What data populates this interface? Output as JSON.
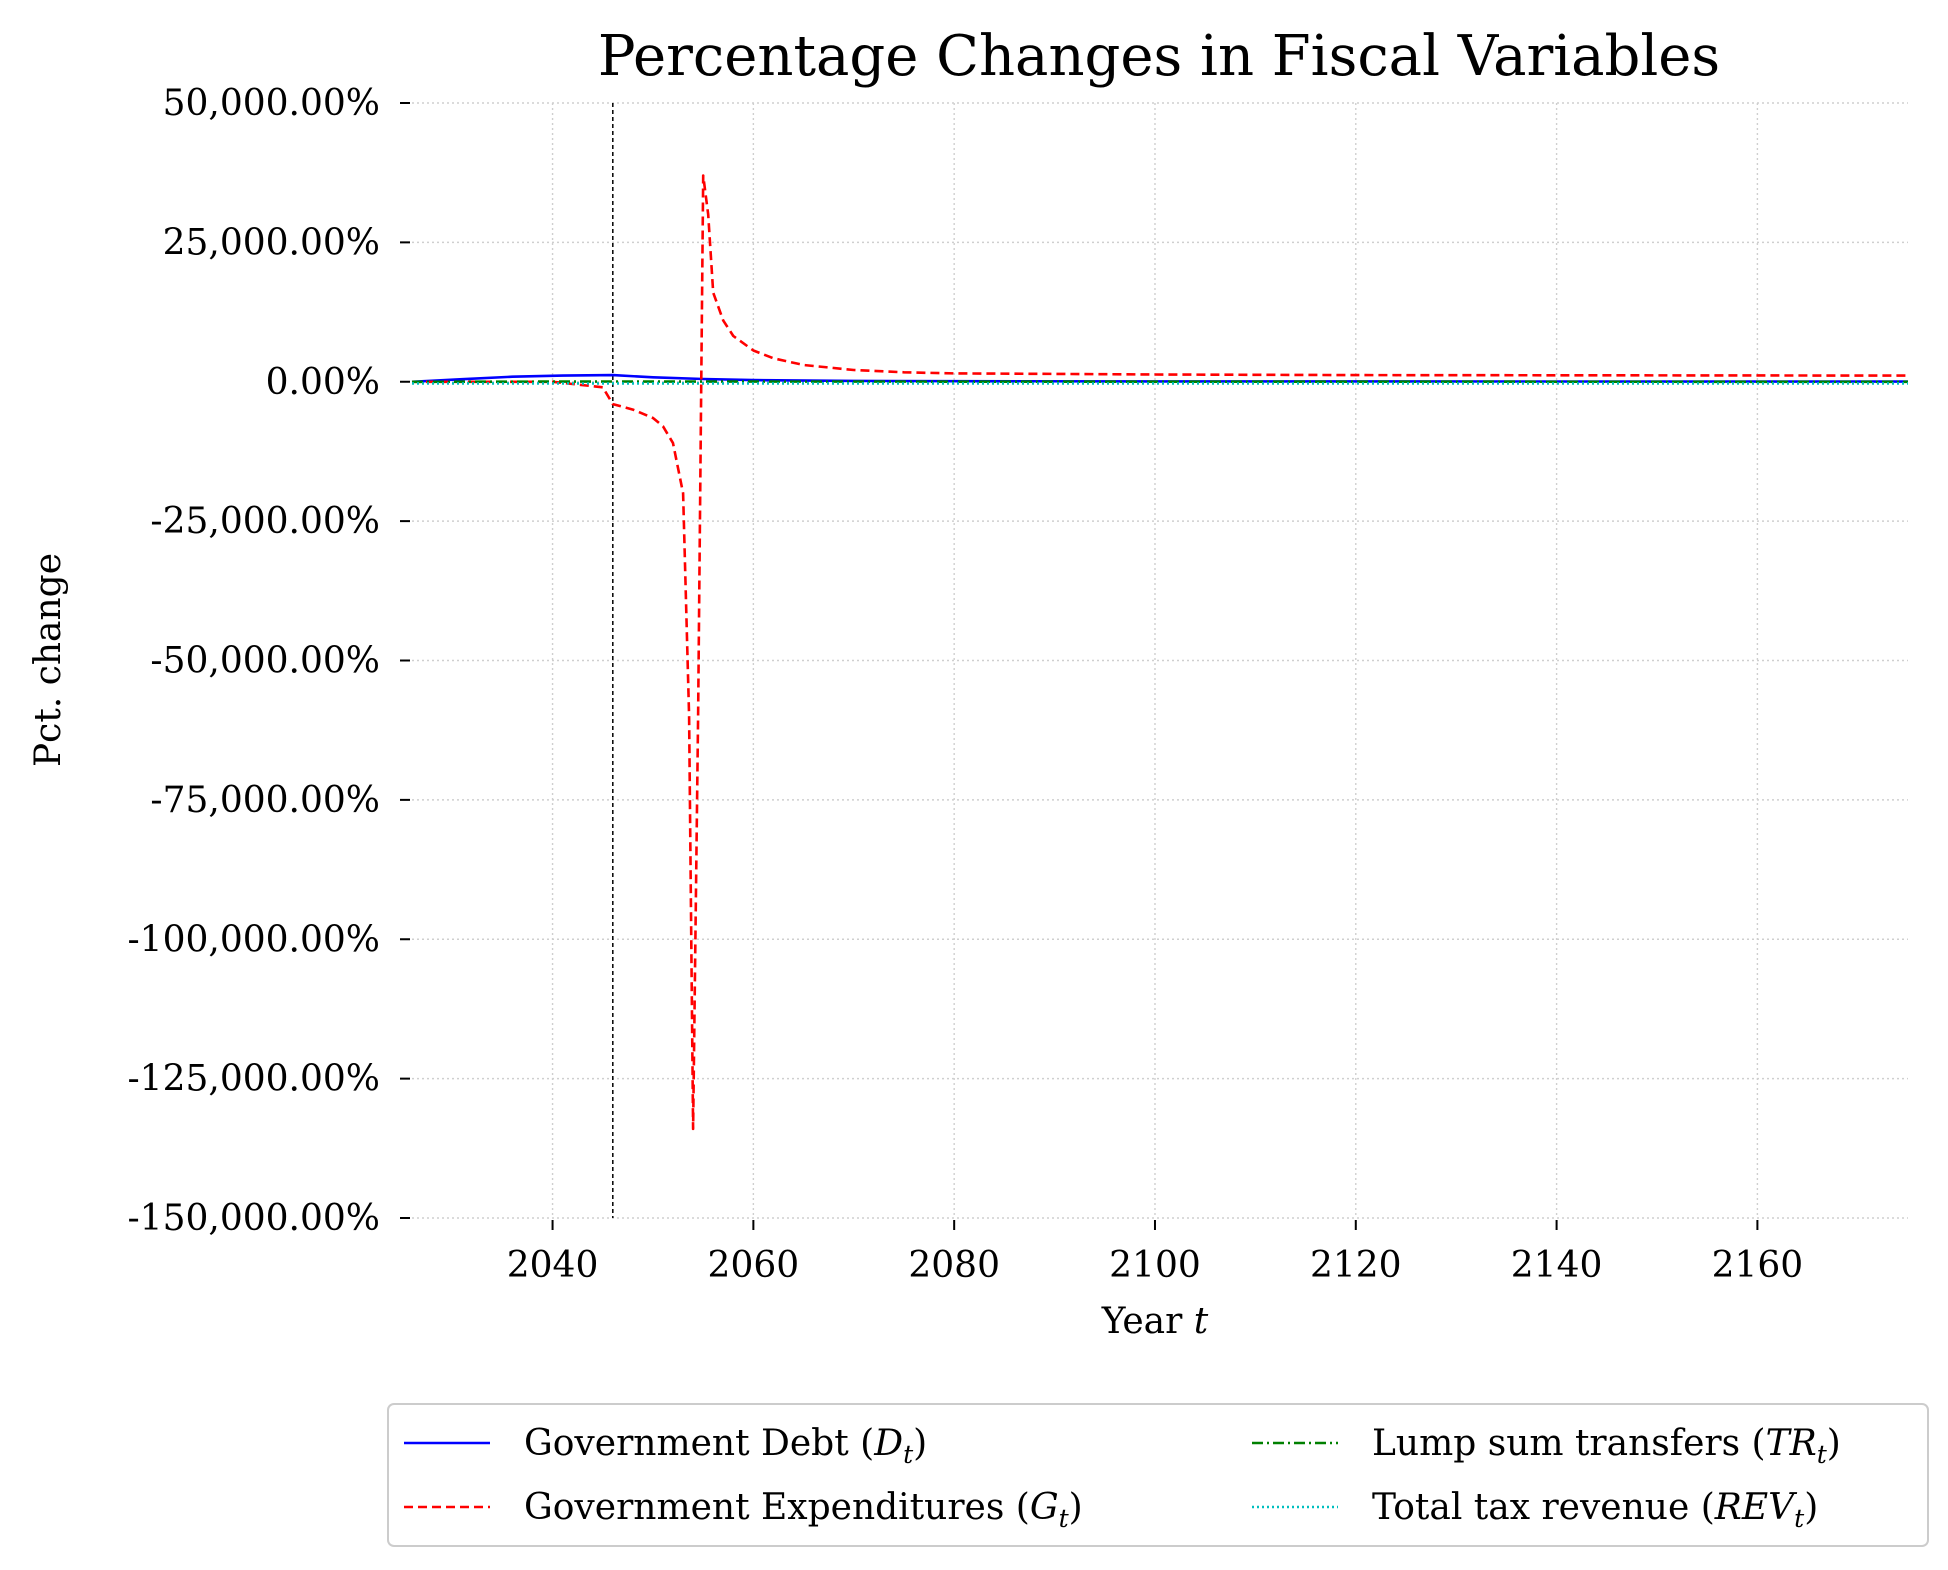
{
  "chart_data": {
    "type": "line",
    "title": "Percentage Changes in Fiscal Variables",
    "xlabel": "Year",
    "xlabel_var": "t",
    "ylabel": "Pct. change",
    "xlim": [
      2026,
      2175
    ],
    "ylim": [
      -150000,
      50000
    ],
    "xticks": [
      2040,
      2060,
      2080,
      2100,
      2120,
      2140,
      2160
    ],
    "yticks": [
      50000,
      25000,
      0,
      -25000,
      -50000,
      -75000,
      -100000,
      -125000,
      -150000
    ],
    "ytick_labels": [
      "50,000.00%",
      "25,000.00%",
      "0.00%",
      "-25,000.00%",
      "-50,000.00%",
      "-75,000.00%",
      "-100,000.00%",
      "-125,000.00%",
      "-150,000.00%"
    ],
    "grid": true,
    "vline_x": 2046,
    "legend_placement": "below",
    "series": [
      {
        "name": "Government Debt",
        "symbol": "D",
        "sub": "t",
        "color": "#0000ff",
        "style": "solid",
        "x": [
          2026,
          2031,
          2036,
          2041,
          2046,
          2050,
          2055,
          2060,
          2070,
          2080,
          2100,
          2175
        ],
        "y": [
          0,
          450,
          900,
          1100,
          1200,
          800,
          500,
          300,
          150,
          100,
          60,
          30
        ]
      },
      {
        "name": "Government Expenditures",
        "symbol": "G",
        "sub": "t",
        "color": "#ff0000",
        "style": "dashed",
        "x": [
          2026,
          2040,
          2045,
          2046,
          2048,
          2050,
          2051,
          2052,
          2053,
          2053.6,
          2054,
          2054.5,
          2055,
          2055.5,
          2056,
          2057,
          2058,
          2060,
          2062,
          2065,
          2070,
          2075,
          2080,
          2090,
          2100,
          2120,
          2175
        ],
        "y": [
          0,
          0,
          -1000,
          -4000,
          -5000,
          -6500,
          -8000,
          -11000,
          -20000,
          -60000,
          -134000,
          -60000,
          37000,
          30000,
          16000,
          11000,
          8200,
          5600,
          4200,
          3000,
          2100,
          1700,
          1500,
          1400,
          1300,
          1200,
          1100
        ]
      },
      {
        "name": "Lump sum transfers",
        "symbol": "TR",
        "sub": "t",
        "color": "#008000",
        "style": "dashdot",
        "x": [
          2026,
          2046,
          2055,
          2175
        ],
        "y": [
          0,
          50,
          20,
          0
        ]
      },
      {
        "name": "Total tax revenue",
        "symbol": "REV",
        "sub": "t",
        "color": "#00bfbf",
        "style": "dotted",
        "x": [
          2026,
          2046,
          2055,
          2175
        ],
        "y": [
          -300,
          -300,
          -300,
          -300
        ]
      }
    ]
  }
}
